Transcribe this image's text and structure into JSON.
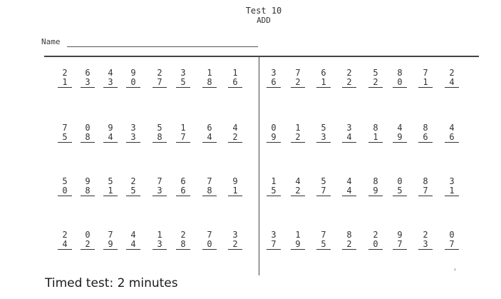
{
  "worksheet": {
    "title": "Test 10",
    "subtitle": "ADD",
    "name_label": "Name",
    "caption": "Timed test: 2 minutes",
    "stray_mark": "›",
    "rows": [
      [
        {
          "top": "2",
          "bottom": "1"
        },
        {
          "top": "6",
          "bottom": "3"
        },
        {
          "top": "4",
          "bottom": "3"
        },
        {
          "top": "9",
          "bottom": "0"
        },
        {
          "top": "2",
          "bottom": "7"
        },
        {
          "top": "3",
          "bottom": "5"
        },
        {
          "top": "1",
          "bottom": "8"
        },
        {
          "top": "1",
          "bottom": "6"
        },
        {
          "top": "3",
          "bottom": "6"
        },
        {
          "top": "7",
          "bottom": "2"
        },
        {
          "top": "6",
          "bottom": "1"
        },
        {
          "top": "2",
          "bottom": "2"
        },
        {
          "top": "5",
          "bottom": "2"
        },
        {
          "top": "8",
          "bottom": "0"
        },
        {
          "top": "7",
          "bottom": "1"
        },
        {
          "top": "2",
          "bottom": "4"
        }
      ],
      [
        {
          "top": "7",
          "bottom": "5"
        },
        {
          "top": "0",
          "bottom": "8"
        },
        {
          "top": "9",
          "bottom": "4"
        },
        {
          "top": "3",
          "bottom": "3"
        },
        {
          "top": "5",
          "bottom": "8"
        },
        {
          "top": "1",
          "bottom": "7"
        },
        {
          "top": "6",
          "bottom": "4"
        },
        {
          "top": "4",
          "bottom": "2"
        },
        {
          "top": "0",
          "bottom": "9"
        },
        {
          "top": "1",
          "bottom": "2"
        },
        {
          "top": "5",
          "bottom": "3"
        },
        {
          "top": "3",
          "bottom": "4"
        },
        {
          "top": "8",
          "bottom": "1"
        },
        {
          "top": "4",
          "bottom": "9"
        },
        {
          "top": "8",
          "bottom": "6"
        },
        {
          "top": "4",
          "bottom": "6"
        }
      ],
      [
        {
          "top": "5",
          "bottom": "0"
        },
        {
          "top": "9",
          "bottom": "8"
        },
        {
          "top": "5",
          "bottom": "1"
        },
        {
          "top": "2",
          "bottom": "5"
        },
        {
          "top": "7",
          "bottom": "3"
        },
        {
          "top": "6",
          "bottom": "6"
        },
        {
          "top": "7",
          "bottom": "8"
        },
        {
          "top": "9",
          "bottom": "1"
        },
        {
          "top": "1",
          "bottom": "5"
        },
        {
          "top": "4",
          "bottom": "2"
        },
        {
          "top": "5",
          "bottom": "7"
        },
        {
          "top": "4",
          "bottom": "4"
        },
        {
          "top": "8",
          "bottom": "9"
        },
        {
          "top": "0",
          "bottom": "5"
        },
        {
          "top": "8",
          "bottom": "7"
        },
        {
          "top": "3",
          "bottom": "1"
        }
      ],
      [
        {
          "top": "2",
          "bottom": "4"
        },
        {
          "top": "0",
          "bottom": "2"
        },
        {
          "top": "7",
          "bottom": "9"
        },
        {
          "top": "4",
          "bottom": "4"
        },
        {
          "top": "1",
          "bottom": "3"
        },
        {
          "top": "2",
          "bottom": "8"
        },
        {
          "top": "7",
          "bottom": "0"
        },
        {
          "top": "3",
          "bottom": "2"
        },
        {
          "top": "3",
          "bottom": "7"
        },
        {
          "top": "1",
          "bottom": "9"
        },
        {
          "top": "7",
          "bottom": "5"
        },
        {
          "top": "8",
          "bottom": "2"
        },
        {
          "top": "2",
          "bottom": "0"
        },
        {
          "top": "9",
          "bottom": "7"
        },
        {
          "top": "2",
          "bottom": "3"
        },
        {
          "top": "0",
          "bottom": "7"
        }
      ]
    ]
  }
}
